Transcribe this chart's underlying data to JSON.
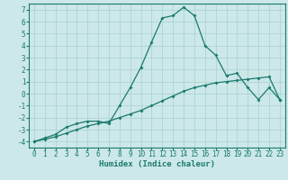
{
  "xlabel": "Humidex (Indice chaleur)",
  "background_color": "#cce8e8",
  "line_color": "#1a7a6e",
  "grid_color": "#a8d0d0",
  "line1_x": [
    0,
    1,
    2,
    3,
    4,
    5,
    6,
    7,
    8,
    9,
    10,
    11,
    12,
    13,
    14,
    15,
    16,
    17,
    18,
    19,
    20,
    21,
    22,
    23
  ],
  "line1_y": [
    -4.0,
    -3.7,
    -3.4,
    -2.8,
    -2.5,
    -2.3,
    -2.3,
    -2.5,
    -1.0,
    0.5,
    2.2,
    4.3,
    6.3,
    6.5,
    7.2,
    6.5,
    4.0,
    3.2,
    1.5,
    1.7,
    0.5,
    -0.5,
    0.5,
    -0.5
  ],
  "line2_x": [
    0,
    1,
    2,
    3,
    4,
    5,
    6,
    7,
    8,
    9,
    10,
    11,
    12,
    13,
    14,
    15,
    16,
    17,
    18,
    19,
    20,
    21,
    22,
    23
  ],
  "line2_y": [
    -4.0,
    -3.8,
    -3.6,
    -3.3,
    -3.0,
    -2.7,
    -2.5,
    -2.3,
    -2.0,
    -1.7,
    -1.4,
    -1.0,
    -0.6,
    -0.2,
    0.2,
    0.5,
    0.7,
    0.9,
    1.0,
    1.1,
    1.2,
    1.3,
    1.4,
    -0.5
  ],
  "xlim": [
    -0.5,
    23.5
  ],
  "ylim": [
    -4.5,
    7.5
  ],
  "yticks": [
    -4,
    -3,
    -2,
    -1,
    0,
    1,
    2,
    3,
    4,
    5,
    6,
    7
  ],
  "xticks": [
    0,
    1,
    2,
    3,
    4,
    5,
    6,
    7,
    8,
    9,
    10,
    11,
    12,
    13,
    14,
    15,
    16,
    17,
    18,
    19,
    20,
    21,
    22,
    23
  ],
  "xlabel_fontsize": 6.5,
  "tick_fontsize": 5.5
}
